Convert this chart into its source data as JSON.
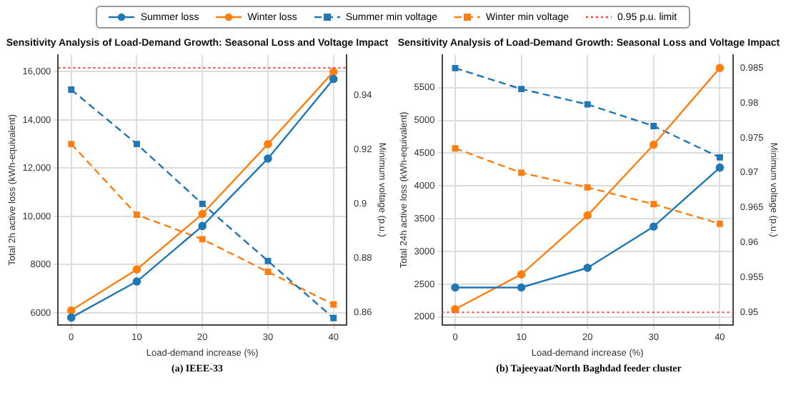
{
  "chart_data": [
    {
      "type": "line",
      "title": "Sensitivity Analysis of Load-Demand Growth: Seasonal Loss and Voltage Impact",
      "xlabel": "Load-demand increase (%)",
      "ylabel": "Total 2h active loss (kWh-equivalent)",
      "y2label": "Minimum voltage (p.u.)",
      "annotations": [
        "(a) IEEE-33"
      ],
      "x": [
        0,
        10,
        20,
        30,
        40
      ],
      "xlim": [
        -2,
        42
      ],
      "xticks": [
        0,
        10,
        20,
        30,
        40
      ],
      "ylim": [
        5500,
        16700
      ],
      "yticks": [
        6000,
        8000,
        {
          "value": 10000,
          "label": "10,000"
        },
        {
          "value": 12000,
          "label": "12,000"
        },
        {
          "value": 14000,
          "label": "14,000"
        },
        {
          "value": 16000,
          "label": "16,000"
        }
      ],
      "y2lim": [
        0.8555,
        0.9548
      ],
      "y2ticks": [
        0.86,
        0.88,
        0.9,
        0.92,
        0.94
      ],
      "grid": true,
      "legend": "top",
      "series": [
        {
          "name": "Summer loss",
          "color": "#1f77b4",
          "marker": "circle",
          "line_style": "solid",
          "values": [
            5800,
            7300,
            9600,
            12400,
            15700
          ]
        },
        {
          "name": "Winter loss",
          "color": "#ff7f0e",
          "marker": "circle",
          "line_style": "solid",
          "values": [
            6100,
            7800,
            10100,
            13000,
            16000
          ]
        },
        {
          "name": "Summer min voltage",
          "color": "#1f77b4",
          "marker": "square",
          "line_style": "dashed",
          "axis": "y2",
          "values": [
            0.942,
            0.922,
            0.9,
            0.879,
            0.858
          ]
        },
        {
          "name": "Winter min voltage",
          "color": "#ff7f0e",
          "marker": "square",
          "line_style": "dashed",
          "axis": "y2",
          "values": [
            0.922,
            0.896,
            0.887,
            0.875,
            0.863
          ]
        }
      ],
      "ref_lines": [
        {
          "axis": "y2",
          "value": 0.95,
          "label": "0.95 p.u. limit",
          "color": "#ff4040",
          "line_style": "dotted"
        }
      ]
    },
    {
      "type": "line",
      "title": "Sensitivity Analysis of Load-Demand Growth: Seasonal Loss and Voltage Impact",
      "xlabel": "Load-demand increase (%)",
      "ylabel": "Total 24h active loss (kWh-equivalent)",
      "y2label": "Minimum voltage (p.u.)",
      "annotations": [
        "(b) Tajeeyaat/North Baghdad feeder cluster"
      ],
      "x": [
        0,
        10,
        20,
        30,
        40
      ],
      "xlim": [
        -2,
        42
      ],
      "xticks": [
        0,
        10,
        20,
        30,
        40
      ],
      "ylim": [
        1880,
        6000
      ],
      "yticks": [
        2000,
        2500,
        3000,
        3500,
        4000,
        4500,
        5000,
        5500
      ],
      "y2lim": [
        0.9482,
        0.9869
      ],
      "y2ticks": [
        0.95,
        0.955,
        0.96,
        0.965,
        0.97,
        0.975,
        0.98,
        0.985
      ],
      "grid": true,
      "series": [
        {
          "color": "#1f77b4",
          "marker": "circle",
          "line_style": "solid",
          "values": [
            2450,
            2450,
            2750,
            3380,
            4280
          ]
        },
        {
          "color": "#ff7f0e",
          "marker": "circle",
          "line_style": "solid",
          "values": [
            2120,
            2650,
            3550,
            4630,
            5800
          ]
        },
        {
          "color": "#1f77b4",
          "marker": "square",
          "line_style": "dashed",
          "axis": "y2",
          "values": [
            0.985,
            0.982,
            0.9798,
            0.9767,
            0.9722
          ]
        },
        {
          "color": "#ff7f0e",
          "marker": "square",
          "line_style": "dashed",
          "axis": "y2",
          "values": [
            0.9735,
            0.97,
            0.9679,
            0.9655,
            0.9627
          ]
        }
      ],
      "ref_lines": [
        {
          "axis": "y2",
          "value": 0.95,
          "color": "#ff4040",
          "line_style": "dotted"
        }
      ]
    }
  ]
}
